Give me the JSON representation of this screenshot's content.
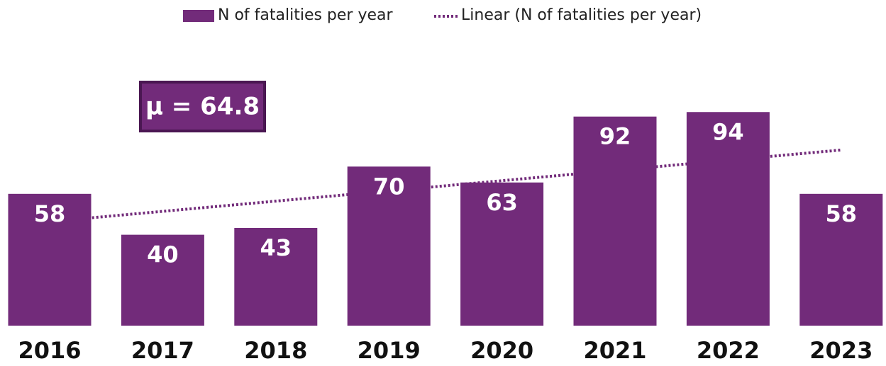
{
  "chart_data": {
    "type": "bar",
    "annotation": "μ = 64.8",
    "categories": [
      "2016",
      "2017",
      "2018",
      "2019",
      "2020",
      "2021",
      "2022",
      "2023"
    ],
    "series": [
      {
        "name": "N of fatalities per year",
        "color": "#722b7a",
        "values": [
          58,
          40,
          43,
          70,
          63,
          92,
          94,
          58
        ]
      },
      {
        "name": "Linear (N of fatalities per year)",
        "type": "trendline",
        "color": "#722b7a",
        "values": [
          45.8,
          50.3,
          54.8,
          59.3,
          63.8,
          68.3,
          72.8,
          77.3
        ]
      }
    ],
    "ylim": [
      0,
      100
    ]
  }
}
